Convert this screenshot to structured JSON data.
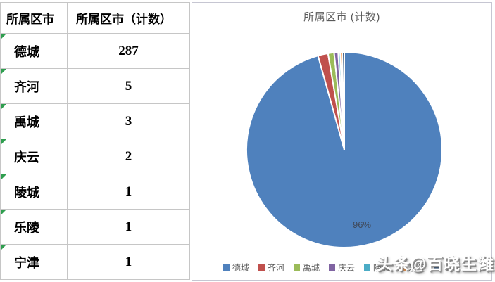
{
  "table": {
    "headers": [
      "所属区市",
      "所属区市（计数）"
    ],
    "rows": [
      {
        "name": "德城",
        "count": "287"
      },
      {
        "name": "齐河",
        "count": "5"
      },
      {
        "name": "禹城",
        "count": "3"
      },
      {
        "name": "庆云",
        "count": "2"
      },
      {
        "name": "陵城",
        "count": "1"
      },
      {
        "name": "乐陵",
        "count": "1"
      },
      {
        "name": "宁津",
        "count": "1"
      }
    ],
    "error_indicator_color": "#2f9e4f"
  },
  "chart": {
    "title": "所属区市 (计数)",
    "big_slice_label": "96%"
  },
  "chart_data": {
    "type": "pie",
    "title": "所属区市 (计数)",
    "categories": [
      "德城",
      "齐河",
      "禹城",
      "庆云",
      "陵城",
      "乐陵",
      "宁津"
    ],
    "values": [
      287,
      5,
      3,
      2,
      1,
      1,
      1
    ],
    "percentages": [
      95.7,
      1.7,
      1.0,
      0.7,
      0.3,
      0.3,
      0.3
    ],
    "colors": [
      "#4F81BD",
      "#C0504D",
      "#9BBB59",
      "#8064A2",
      "#4BACC6",
      "#F79646",
      "#2C4D75"
    ],
    "data_labels": [
      {
        "category": "德城",
        "label": "96%"
      }
    ],
    "legend_position": "bottom",
    "start_angle_deg": 0,
    "slice_border_color": "#ffffff"
  },
  "watermark": {
    "text": "头条@百晓生潍"
  }
}
